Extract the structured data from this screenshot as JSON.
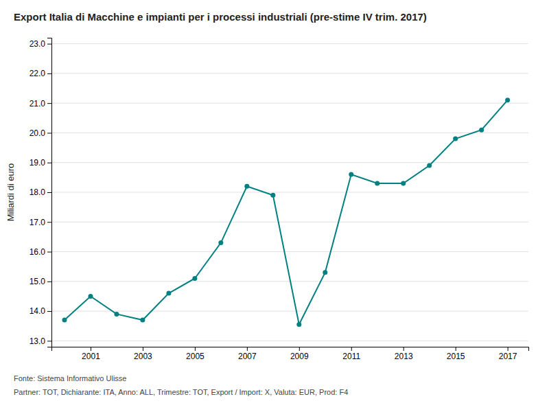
{
  "chart_data": {
    "type": "line",
    "title": "Export Italia di Macchine e impianti per i processi industriali (pre-stime IV trim. 2017)",
    "ylabel": "Miliardi di euro",
    "annotations": [
      "Fonte: Sistema Informativo Ulisse",
      "Partner: TOT, Dichiarante: ITA, Anno: ALL, Trimestre: TOT, Export / Import: X, Valuta: EUR, Prod: F4"
    ],
    "x": [
      2000,
      2001,
      2002,
      2003,
      2004,
      2005,
      2006,
      2007,
      2008,
      2009,
      2010,
      2011,
      2012,
      2013,
      2014,
      2015,
      2016,
      2017
    ],
    "values": [
      13.7,
      14.5,
      13.9,
      13.7,
      14.6,
      15.1,
      16.3,
      18.2,
      17.9,
      13.55,
      15.3,
      18.6,
      18.3,
      18.3,
      18.9,
      19.8,
      20.1,
      21.1
    ],
    "color": "#008080",
    "marker": "circle",
    "ylim": [
      12.8,
      23.2
    ],
    "yticks": [
      {
        "value": 13.0,
        "label": "13.0"
      },
      {
        "value": 14.0,
        "label": "14.0"
      },
      {
        "value": 15.0,
        "label": "15.0"
      },
      {
        "value": 16.0,
        "label": "16.0"
      },
      {
        "value": 17.0,
        "label": "17.0"
      },
      {
        "value": 18.0,
        "label": "18.0"
      },
      {
        "value": 19.0,
        "label": "19.0"
      },
      {
        "value": 20.0,
        "label": "20.0"
      },
      {
        "value": 21.0,
        "label": "21.0"
      },
      {
        "value": 22.0,
        "label": "22.0"
      },
      {
        "value": 23.0,
        "label": "23.0"
      }
    ],
    "xlim": [
      1999.5,
      2017.8
    ],
    "xticks": [
      2001,
      2003,
      2005,
      2007,
      2009,
      2011,
      2013,
      2015,
      2017
    ],
    "grid": "y"
  }
}
